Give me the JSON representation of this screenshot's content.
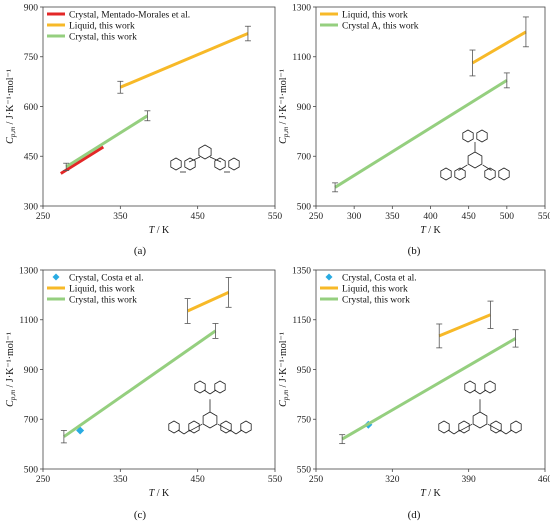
{
  "chart_data": [
    {
      "type": "line",
      "panel_label": "(a)",
      "xlabel": "T / K",
      "ylabel": "Cp,m / J·K⁻¹·mol⁻¹",
      "xlim": [
        250,
        550
      ],
      "ylim": [
        300,
        900
      ],
      "xticks": [
        "250",
        "350",
        "450",
        "550"
      ],
      "yticks": [
        "300",
        "450",
        "600",
        "750",
        "900"
      ],
      "grid": false,
      "legend_position": "top-left",
      "series": [
        {
          "name": "Crystal, Mentado-Morales et al.",
          "kind": "line",
          "color": "#e32727",
          "x": [
            273,
            328
          ],
          "y": [
            398,
            478
          ]
        },
        {
          "name": "Liquid, this work",
          "kind": "line",
          "color": "#f7b928",
          "x": [
            350,
            515
          ],
          "y": [
            658,
            820
          ]
        },
        {
          "name": "Crystal, this work",
          "kind": "line",
          "color": "#95cf7f",
          "x": [
            280,
            385
          ],
          "y": [
            418,
            572
          ]
        }
      ],
      "error_bars": [
        {
          "x": 350,
          "y": 658,
          "err": 18
        },
        {
          "x": 515,
          "y": 820,
          "err": 22
        },
        {
          "x": 280,
          "y": 418,
          "err": 11
        },
        {
          "x": 385,
          "y": 572,
          "err": 15
        }
      ]
    },
    {
      "type": "line",
      "panel_label": "(b)",
      "xlabel": "T / K",
      "ylabel": "Cp,m / J·K⁻¹·mol⁻¹",
      "xlim": [
        250,
        550
      ],
      "ylim": [
        500,
        1300
      ],
      "xticks": [
        "250",
        "300",
        "350",
        "400",
        "450",
        "500",
        "550"
      ],
      "yticks": [
        "500",
        "700",
        "900",
        "1100",
        "1300"
      ],
      "grid": false,
      "legend_position": "top-left",
      "series": [
        {
          "name": "Liquid, this work",
          "kind": "line",
          "color": "#f7b928",
          "x": [
            455,
            525
          ],
          "y": [
            1075,
            1200
          ]
        },
        {
          "name": "Crystal A, this work",
          "kind": "line",
          "color": "#95cf7f",
          "x": [
            275,
            500
          ],
          "y": [
            575,
            1005
          ]
        }
      ],
      "error_bars": [
        {
          "x": 455,
          "y": 1075,
          "err": 52
        },
        {
          "x": 525,
          "y": 1200,
          "err": 60
        },
        {
          "x": 275,
          "y": 575,
          "err": 18
        },
        {
          "x": 500,
          "y": 1005,
          "err": 30
        }
      ]
    },
    {
      "type": "line",
      "panel_label": "(c)",
      "xlabel": "T / K",
      "ylabel": "Cp,m / J·K⁻¹·mol⁻¹",
      "xlim": [
        250,
        550
      ],
      "ylim": [
        500,
        1300
      ],
      "xticks": [
        "250",
        "350",
        "450",
        "550"
      ],
      "yticks": [
        "500",
        "700",
        "900",
        "1100",
        "1300"
      ],
      "grid": false,
      "legend_position": "top-left",
      "series": [
        {
          "name": "Crystal, Costa et al.",
          "kind": "scatter",
          "color": "#29abe2",
          "x": [
            298
          ],
          "y": [
            655
          ]
        },
        {
          "name": "Liquid, this work",
          "kind": "line",
          "color": "#f7b928",
          "x": [
            437,
            490
          ],
          "y": [
            1135,
            1210
          ]
        },
        {
          "name": "Crystal, this work",
          "kind": "line",
          "color": "#95cf7f",
          "x": [
            277,
            473
          ],
          "y": [
            630,
            1055
          ]
        }
      ],
      "error_bars": [
        {
          "x": 437,
          "y": 1135,
          "err": 50
        },
        {
          "x": 490,
          "y": 1210,
          "err": 60
        },
        {
          "x": 277,
          "y": 630,
          "err": 25
        },
        {
          "x": 473,
          "y": 1055,
          "err": 30
        }
      ]
    },
    {
      "type": "line",
      "panel_label": "(d)",
      "xlabel": "T / K",
      "ylabel": "Cp,m / J·K⁻¹·mol⁻¹",
      "xlim": [
        250,
        460
      ],
      "ylim": [
        550,
        1350
      ],
      "xticks": [
        "250",
        "320",
        "390",
        "460"
      ],
      "yticks": [
        "550",
        "750",
        "950",
        "1150",
        "1350"
      ],
      "grid": false,
      "legend_position": "top-left",
      "series": [
        {
          "name": "Crystal, Costa et al.",
          "kind": "scatter",
          "color": "#29abe2",
          "x": [
            298
          ],
          "y": [
            728
          ]
        },
        {
          "name": "Liquid, this work",
          "kind": "line",
          "color": "#f7b928",
          "x": [
            363,
            410
          ],
          "y": [
            1085,
            1170
          ]
        },
        {
          "name": "Crystal, this work",
          "kind": "line",
          "color": "#95cf7f",
          "x": [
            274,
            433
          ],
          "y": [
            670,
            1075
          ]
        }
      ],
      "error_bars": [
        {
          "x": 363,
          "y": 1085,
          "err": 48
        },
        {
          "x": 410,
          "y": 1170,
          "err": 55
        },
        {
          "x": 274,
          "y": 670,
          "err": 18
        },
        {
          "x": 433,
          "y": 1075,
          "err": 35
        }
      ]
    }
  ]
}
